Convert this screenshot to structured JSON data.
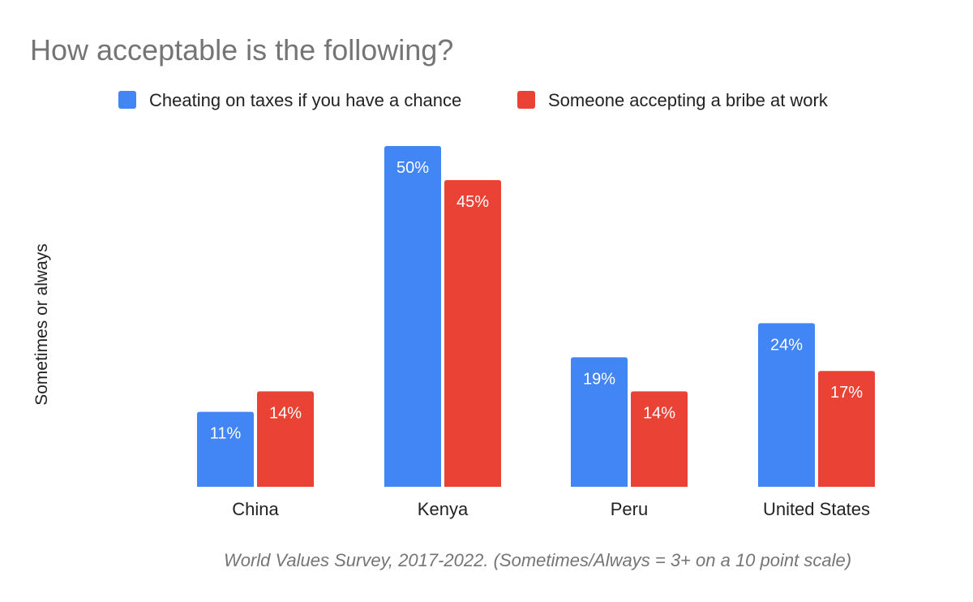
{
  "chart_data": {
    "type": "bar",
    "title": "How acceptable is the following?",
    "ylabel": "Sometimes or always",
    "xlabel": "",
    "categories": [
      "China",
      "Kenya",
      "Peru",
      "United States"
    ],
    "series": [
      {
        "name": "Cheating on taxes if you have a chance",
        "color": "#4285F4",
        "values": [
          11,
          50,
          19,
          24
        ],
        "labels": [
          "11%",
          "50%",
          "19%",
          "24%"
        ]
      },
      {
        "name": "Someone accepting a bribe at work",
        "color": "#EA4335",
        "values": [
          14,
          45,
          14,
          17
        ],
        "labels": [
          "14%",
          "45%",
          "14%",
          "17%"
        ]
      }
    ],
    "ylim": [
      0,
      50
    ],
    "grid": false,
    "legend_position": "top",
    "note": "World Values Survey, 2017-2022. (Sometimes/Always = 3+ on a 10 point scale)"
  }
}
